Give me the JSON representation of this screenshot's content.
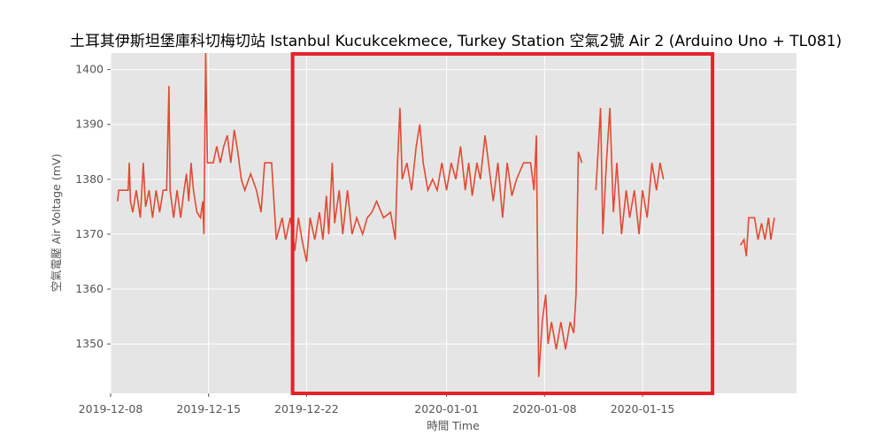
{
  "chart_data": {
    "type": "line",
    "title": "土耳其伊斯坦堡庫科切梅切站 Istanbul Kucukcekmece, Turkey Station 空氣2號 Air 2 (Arduino Uno + TL081)",
    "xlabel": "時間 Time",
    "ylabel": "空氣電壓 Air Voltage (mV)",
    "xlim": [
      "2019-12-08",
      "2020-01-26"
    ],
    "ylim": [
      1341,
      1403
    ],
    "x_ticks": [
      "2019-12-08",
      "2019-12-15",
      "2019-12-22",
      "2020-01-01",
      "2020-01-08",
      "2020-01-15"
    ],
    "y_ticks": [
      1350,
      1360,
      1370,
      1380,
      1390,
      1400
    ],
    "grid": true,
    "background": "#e5e5e5",
    "line_color": "#e24a33",
    "series": [
      {
        "segments": [
          [
            [
              "2019-12-08T12:00",
              1376
            ],
            [
              "2019-12-08T14:00",
              1378
            ],
            [
              "2019-12-09T06:00",
              1378
            ],
            [
              "2019-12-09T08:00",
              1383
            ],
            [
              "2019-12-09T10:00",
              1376
            ],
            [
              "2019-12-09T14:00",
              1374
            ],
            [
              "2019-12-09T20:00",
              1378
            ],
            [
              "2019-12-10T03:00",
              1373
            ],
            [
              "2019-12-10T08:00",
              1383
            ],
            [
              "2019-12-10T12:00",
              1375
            ],
            [
              "2019-12-10T18:00",
              1378
            ],
            [
              "2019-12-11T00:00",
              1373
            ],
            [
              "2019-12-11T06:00",
              1378
            ],
            [
              "2019-12-11T12:00",
              1374
            ],
            [
              "2019-12-11T18:00",
              1378
            ],
            [
              "2019-12-12T00:00",
              1378
            ],
            [
              "2019-12-12T04:00",
              1397
            ],
            [
              "2019-12-12T06:00",
              1378
            ],
            [
              "2019-12-12T12:00",
              1373
            ],
            [
              "2019-12-12T18:00",
              1378
            ],
            [
              "2019-12-13T00:00",
              1373
            ],
            [
              "2019-12-13T06:00",
              1378
            ],
            [
              "2019-12-13T10:00",
              1381
            ],
            [
              "2019-12-13T14:00",
              1376
            ],
            [
              "2019-12-13T18:00",
              1383
            ],
            [
              "2019-12-13T22:00",
              1378
            ],
            [
              "2019-12-14T04:00",
              1374
            ],
            [
              "2019-12-14T10:00",
              1373
            ],
            [
              "2019-12-14T14:00",
              1376
            ],
            [
              "2019-12-14T16:00",
              1370
            ],
            [
              "2019-12-14T19:00",
              1403
            ],
            [
              "2019-12-14T22:00",
              1383
            ],
            [
              "2019-12-15T08:00",
              1383
            ],
            [
              "2019-12-15T14:00",
              1386
            ],
            [
              "2019-12-15T20:00",
              1383
            ],
            [
              "2019-12-16T02:00",
              1386
            ],
            [
              "2019-12-16T08:00",
              1388
            ],
            [
              "2019-12-16T14:00",
              1383
            ],
            [
              "2019-12-16T20:00",
              1389
            ],
            [
              "2019-12-17T02:00",
              1385
            ],
            [
              "2019-12-17T08:00",
              1380
            ],
            [
              "2019-12-17T14:00",
              1378
            ],
            [
              "2019-12-18T00:00",
              1381
            ],
            [
              "2019-12-18T10:00",
              1378
            ],
            [
              "2019-12-18T18:00",
              1374
            ],
            [
              "2019-12-19T00:00",
              1383
            ],
            [
              "2019-12-19T12:00",
              1383
            ],
            [
              "2019-12-19T20:00",
              1369
            ],
            [
              "2019-12-20T06:00",
              1373
            ],
            [
              "2019-12-20T12:00",
              1369
            ],
            [
              "2019-12-20T20:00",
              1373
            ],
            [
              "2019-12-21T04:00",
              1367
            ],
            [
              "2019-12-21T10:00",
              1373
            ],
            [
              "2019-12-21T16:00",
              1369
            ],
            [
              "2019-12-22T00:00",
              1365
            ],
            [
              "2019-12-22T06:00",
              1373
            ],
            [
              "2019-12-22T14:00",
              1369
            ],
            [
              "2019-12-22T22:00",
              1374
            ],
            [
              "2019-12-23T04:00",
              1369
            ],
            [
              "2019-12-23T10:00",
              1377
            ],
            [
              "2019-12-23T14:00",
              1370
            ],
            [
              "2019-12-23T20:00",
              1383
            ],
            [
              "2019-12-24T00:00",
              1372
            ],
            [
              "2019-12-24T08:00",
              1378
            ],
            [
              "2019-12-24T14:00",
              1370
            ],
            [
              "2019-12-24T22:00",
              1378
            ],
            [
              "2019-12-25T06:00",
              1370
            ],
            [
              "2019-12-25T14:00",
              1373
            ],
            [
              "2019-12-26T00:00",
              1370
            ],
            [
              "2019-12-26T08:00",
              1373
            ],
            [
              "2019-12-26T16:00",
              1374
            ],
            [
              "2019-12-27T00:00",
              1376
            ],
            [
              "2019-12-27T12:00",
              1373
            ],
            [
              "2019-12-28T00:00",
              1374
            ],
            [
              "2019-12-28T08:00",
              1369
            ],
            [
              "2019-12-28T12:00",
              1383
            ],
            [
              "2019-12-28T16:00",
              1393
            ],
            [
              "2019-12-28T20:00",
              1380
            ],
            [
              "2019-12-29T04:00",
              1383
            ],
            [
              "2019-12-29T12:00",
              1378
            ],
            [
              "2019-12-29T20:00",
              1386
            ],
            [
              "2019-12-30T02:00",
              1390
            ],
            [
              "2019-12-30T08:00",
              1383
            ],
            [
              "2019-12-30T16:00",
              1378
            ],
            [
              "2019-12-31T00:00",
              1380
            ],
            [
              "2019-12-31T08:00",
              1378
            ],
            [
              "2019-12-31T16:00",
              1383
            ],
            [
              "2020-01-01T00:00",
              1378
            ],
            [
              "2020-01-01T08:00",
              1383
            ],
            [
              "2020-01-01T16:00",
              1380
            ],
            [
              "2020-01-02T00:00",
              1386
            ],
            [
              "2020-01-02T08:00",
              1378
            ],
            [
              "2020-01-02T14:00",
              1383
            ],
            [
              "2020-01-02T20:00",
              1377
            ],
            [
              "2020-01-03T04:00",
              1383
            ],
            [
              "2020-01-03T10:00",
              1380
            ],
            [
              "2020-01-03T18:00",
              1388
            ],
            [
              "2020-01-04T00:00",
              1383
            ],
            [
              "2020-01-04T08:00",
              1376
            ],
            [
              "2020-01-04T16:00",
              1383
            ],
            [
              "2020-01-05T00:00",
              1373
            ],
            [
              "2020-01-05T08:00",
              1383
            ],
            [
              "2020-01-05T16:00",
              1377
            ],
            [
              "2020-01-06T00:00",
              1380
            ],
            [
              "2020-01-06T12:00",
              1383
            ],
            [
              "2020-01-07T00:00",
              1383
            ],
            [
              "2020-01-07T06:00",
              1378
            ],
            [
              "2020-01-07T10:00",
              1388
            ],
            [
              "2020-01-07T14:00",
              1344
            ],
            [
              "2020-01-07T20:00",
              1354
            ],
            [
              "2020-01-08T02:00",
              1359
            ],
            [
              "2020-01-08T06:00",
              1350
            ],
            [
              "2020-01-08T12:00",
              1354
            ],
            [
              "2020-01-08T20:00",
              1349
            ],
            [
              "2020-01-09T04:00",
              1354
            ],
            [
              "2020-01-09T12:00",
              1349
            ],
            [
              "2020-01-09T20:00",
              1354
            ],
            [
              "2020-01-10T02:00",
              1352
            ],
            [
              "2020-01-10T06:00",
              1359
            ],
            [
              "2020-01-10T10:00",
              1385
            ],
            [
              "2020-01-10T16:00",
              1383
            ]
          ],
          [
            [
              "2020-01-11T16:00",
              1378
            ],
            [
              "2020-01-12T00:00",
              1393
            ],
            [
              "2020-01-12T04:00",
              1370
            ],
            [
              "2020-01-12T10:00",
              1383
            ],
            [
              "2020-01-12T16:00",
              1393
            ],
            [
              "2020-01-12T22:00",
              1374
            ],
            [
              "2020-01-13T04:00",
              1383
            ],
            [
              "2020-01-13T12:00",
              1370
            ],
            [
              "2020-01-13T20:00",
              1378
            ],
            [
              "2020-01-14T02:00",
              1373
            ],
            [
              "2020-01-14T10:00",
              1378
            ],
            [
              "2020-01-14T18:00",
              1370
            ],
            [
              "2020-01-15T00:00",
              1378
            ],
            [
              "2020-01-15T08:00",
              1373
            ],
            [
              "2020-01-15T16:00",
              1383
            ],
            [
              "2020-01-16T00:00",
              1378
            ],
            [
              "2020-01-16T06:00",
              1383
            ],
            [
              "2020-01-16T12:00",
              1380
            ]
          ],
          [
            [
              "2020-01-22T00:00",
              1368
            ],
            [
              "2020-01-22T06:00",
              1369
            ],
            [
              "2020-01-22T10:00",
              1366
            ],
            [
              "2020-01-22T14:00",
              1373
            ],
            [
              "2020-01-23T00:00",
              1373
            ],
            [
              "2020-01-23T06:00",
              1369
            ],
            [
              "2020-01-23T12:00",
              1372
            ],
            [
              "2020-01-23T18:00",
              1369
            ],
            [
              "2020-01-24T00:00",
              1373
            ],
            [
              "2020-01-24T04:00",
              1369
            ],
            [
              "2020-01-24T10:00",
              1373
            ]
          ]
        ]
      }
    ],
    "annotations": [
      {
        "type": "highlight-box",
        "color": "#e3232c",
        "x_range": [
          "2019-12-21",
          "2020-01-20"
        ]
      }
    ]
  }
}
